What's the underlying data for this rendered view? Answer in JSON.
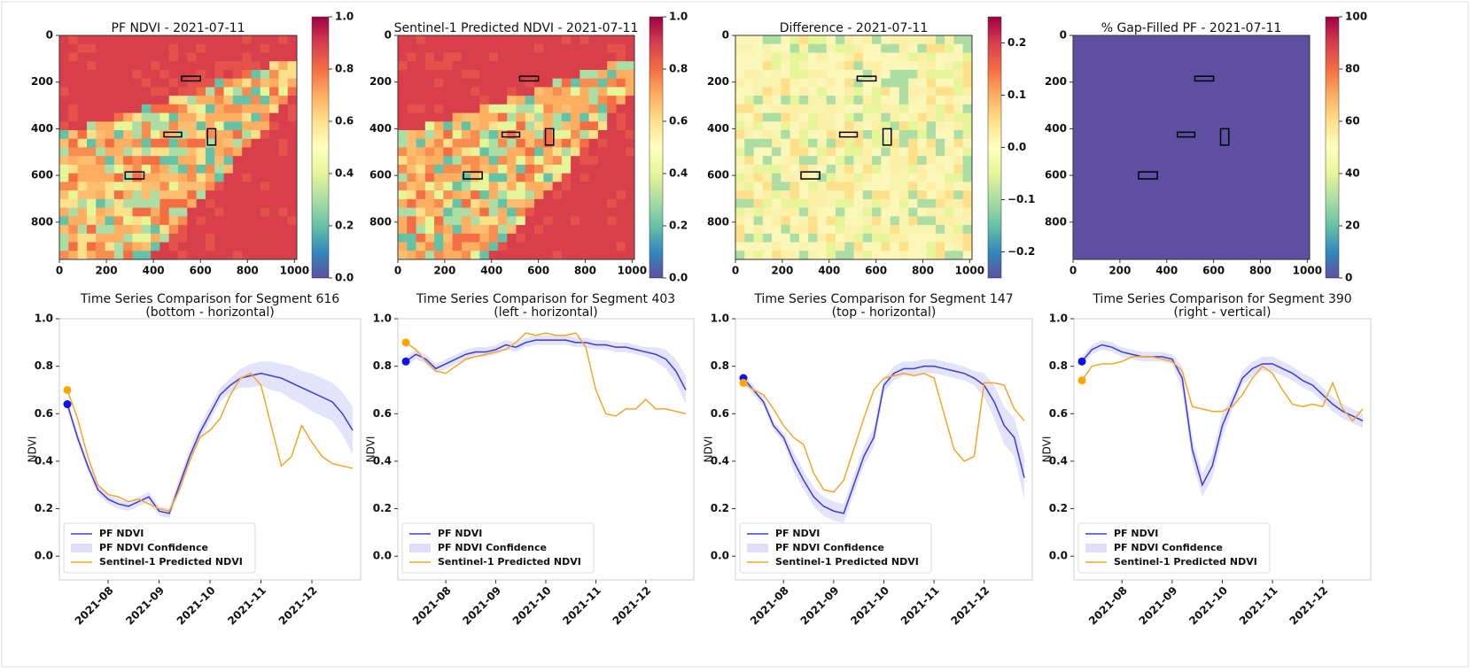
{
  "chart_data": [
    {
      "type": "heatmap",
      "title": "PF NDVI - 2021-07-11",
      "xlim": [
        0,
        1010
      ],
      "ylim": [
        960,
        0
      ],
      "xticks": [
        0,
        200,
        400,
        600,
        800,
        1000
      ],
      "yticks": [
        0,
        200,
        400,
        600,
        800
      ],
      "colormap": "Spectral",
      "clim": [
        0,
        1
      ],
      "cticks": [
        {
          "value": 0,
          "label": "0.0"
        },
        0.2,
        0.4,
        0.6,
        0.8,
        {
          "value": 1,
          "label": "1.0"
        }
      ]
    },
    {
      "type": "heatmap",
      "title": "Sentinel-1 Predicted NDVI - 2021-07-11",
      "xlim": [
        0,
        1010
      ],
      "ylim": [
        960,
        0
      ],
      "xticks": [
        0,
        200,
        400,
        600,
        800,
        1000
      ],
      "yticks": [
        0,
        200,
        400,
        600,
        800
      ],
      "colormap": "Spectral",
      "clim": [
        0,
        1
      ],
      "cticks": [
        {
          "value": 0,
          "label": "0.0"
        },
        0.2,
        0.4,
        0.6,
        0.8,
        {
          "value": 1,
          "label": "1.0"
        }
      ]
    },
    {
      "type": "heatmap",
      "title": "Difference - 2021-07-11",
      "xlim": [
        0,
        1010
      ],
      "ylim": [
        960,
        0
      ],
      "xticks": [
        0,
        200,
        400,
        600,
        800,
        1000
      ],
      "yticks": [
        0,
        200,
        400,
        600,
        800
      ],
      "colormap": "Spectral",
      "clim": [
        -0.25,
        0.25
      ],
      "cticks": [
        {
          "value": -0.2,
          "label": "−0.2"
        },
        {
          "value": -0.1,
          "label": "−0.1"
        },
        {
          "value": 0,
          "label": "0.0"
        },
        0.1,
        0.2
      ]
    },
    {
      "type": "heatmap",
      "title": "% Gap-Filled PF - 2021-07-11",
      "xlim": [
        0,
        1010
      ],
      "ylim": [
        960,
        0
      ],
      "xticks": [
        0,
        200,
        400,
        600,
        800,
        1000
      ],
      "yticks": [
        0,
        200,
        400,
        600,
        800
      ],
      "colormap": "Spectral",
      "clim": [
        0,
        100
      ],
      "cticks": [
        0,
        20,
        40,
        60,
        80,
        100
      ]
    },
    {
      "type": "line",
      "title": "Time Series Comparison for Segment 616",
      "subtitle": "(bottom - horizontal)",
      "y_label": "NDVI",
      "ylim": [
        -0.1,
        1.0
      ],
      "yticks": [
        {
          "value": 0,
          "label": "0.0"
        },
        0.2,
        0.4,
        0.6,
        0.8,
        {
          "value": 1,
          "label": "1.0"
        }
      ],
      "legend": "lower left",
      "start_marker": true,
      "categories": [
        null,
        null,
        null,
        null,
        "2021-08",
        null,
        null,
        null,
        null,
        "2021-09",
        null,
        null,
        null,
        null,
        "2021-10",
        null,
        null,
        null,
        null,
        "2021-11",
        null,
        null,
        null,
        null,
        "2021-12",
        null,
        null,
        null,
        null
      ],
      "series": [
        {
          "name": "PF NDVI",
          "color": "#3b3bdb",
          "values": [
            0.64,
            0.5,
            0.38,
            0.28,
            0.24,
            0.22,
            0.21,
            0.23,
            0.25,
            0.19,
            0.18,
            0.3,
            0.42,
            0.52,
            0.6,
            0.68,
            0.72,
            0.75,
            0.76,
            0.77,
            0.76,
            0.75,
            0.73,
            0.71,
            0.69,
            0.67,
            0.65,
            0.6,
            0.53
          ]
        },
        {
          "name": "PF NDVI Confidence",
          "color": "#dedefa",
          "lower": [
            0.62,
            0.48,
            0.36,
            0.26,
            0.22,
            0.2,
            0.19,
            0.21,
            0.23,
            0.17,
            0.16,
            0.27,
            0.39,
            0.49,
            0.57,
            0.65,
            0.69,
            0.71,
            0.71,
            0.72,
            0.7,
            0.69,
            0.66,
            0.64,
            0.61,
            0.59,
            0.57,
            0.51,
            0.43
          ],
          "upper": [
            0.66,
            0.52,
            0.4,
            0.3,
            0.26,
            0.24,
            0.23,
            0.25,
            0.27,
            0.21,
            0.2,
            0.33,
            0.45,
            0.55,
            0.63,
            0.71,
            0.75,
            0.79,
            0.81,
            0.82,
            0.82,
            0.81,
            0.8,
            0.78,
            0.77,
            0.75,
            0.73,
            0.69,
            0.63
          ]
        },
        {
          "name": "Sentinel-1 Predicted NDVI",
          "color": "#f5a52a",
          "values": [
            0.7,
            0.58,
            0.42,
            0.3,
            0.26,
            0.25,
            0.23,
            0.24,
            0.22,
            0.2,
            0.19,
            0.28,
            0.4,
            0.5,
            0.53,
            0.58,
            0.68,
            0.75,
            0.77,
            0.72,
            0.55,
            0.38,
            0.42,
            0.55,
            0.48,
            0.42,
            0.39,
            0.38,
            0.37
          ]
        }
      ]
    },
    {
      "type": "line",
      "title": "Time Series Comparison for Segment 403",
      "subtitle": "(left - horizontal)",
      "y_label": "NDVI",
      "ylim": [
        -0.1,
        1.0
      ],
      "yticks": [
        {
          "value": 0,
          "label": "0.0"
        },
        0.2,
        0.4,
        0.6,
        0.8,
        {
          "value": 1,
          "label": "1.0"
        }
      ],
      "legend": "lower left",
      "start_marker": true,
      "categories": [
        null,
        null,
        null,
        null,
        "2021-08",
        null,
        null,
        null,
        null,
        "2021-09",
        null,
        null,
        null,
        null,
        "2021-10",
        null,
        null,
        null,
        null,
        "2021-11",
        null,
        null,
        null,
        null,
        "2021-12",
        null,
        null,
        null,
        null
      ],
      "series": [
        {
          "name": "PF NDVI",
          "color": "#3b3bdb",
          "values": [
            0.82,
            0.85,
            0.83,
            0.79,
            0.81,
            0.83,
            0.85,
            0.86,
            0.86,
            0.87,
            0.89,
            0.88,
            0.9,
            0.91,
            0.91,
            0.91,
            0.91,
            0.9,
            0.9,
            0.89,
            0.89,
            0.88,
            0.88,
            0.87,
            0.86,
            0.85,
            0.83,
            0.78,
            0.7
          ]
        },
        {
          "name": "PF NDVI Confidence",
          "color": "#dedefa",
          "lower": [
            0.8,
            0.83,
            0.81,
            0.77,
            0.79,
            0.81,
            0.83,
            0.84,
            0.84,
            0.85,
            0.87,
            0.86,
            0.88,
            0.89,
            0.89,
            0.89,
            0.89,
            0.88,
            0.88,
            0.87,
            0.87,
            0.86,
            0.86,
            0.85,
            0.84,
            0.82,
            0.79,
            0.73,
            0.64
          ],
          "upper": [
            0.84,
            0.87,
            0.85,
            0.81,
            0.83,
            0.85,
            0.87,
            0.88,
            0.88,
            0.89,
            0.91,
            0.9,
            0.92,
            0.93,
            0.93,
            0.93,
            0.93,
            0.92,
            0.92,
            0.91,
            0.91,
            0.9,
            0.9,
            0.89,
            0.88,
            0.88,
            0.87,
            0.83,
            0.76
          ]
        },
        {
          "name": "Sentinel-1 Predicted NDVI",
          "color": "#f5a52a",
          "values": [
            0.9,
            0.87,
            0.82,
            0.78,
            0.77,
            0.8,
            0.83,
            0.84,
            0.85,
            0.86,
            0.87,
            0.9,
            0.94,
            0.93,
            0.94,
            0.93,
            0.93,
            0.94,
            0.88,
            0.7,
            0.6,
            0.59,
            0.62,
            0.62,
            0.66,
            0.62,
            0.62,
            0.61,
            0.6
          ]
        }
      ]
    },
    {
      "type": "line",
      "title": "Time Series Comparison for Segment 147",
      "subtitle": "(top - horizontal)",
      "y_label": "NDVI",
      "ylim": [
        -0.1,
        1.0
      ],
      "yticks": [
        {
          "value": 0,
          "label": "0.0"
        },
        0.2,
        0.4,
        0.6,
        0.8,
        {
          "value": 1,
          "label": "1.0"
        }
      ],
      "legend": "lower left",
      "start_marker": true,
      "categories": [
        null,
        null,
        null,
        null,
        "2021-08",
        null,
        null,
        null,
        null,
        "2021-09",
        null,
        null,
        null,
        null,
        "2021-10",
        null,
        null,
        null,
        null,
        "2021-11",
        null,
        null,
        null,
        null,
        "2021-12",
        null,
        null,
        null,
        null
      ],
      "series": [
        {
          "name": "PF NDVI",
          "color": "#3b3bdb",
          "values": [
            0.75,
            0.7,
            0.65,
            0.55,
            0.5,
            0.4,
            0.32,
            0.25,
            0.21,
            0.19,
            0.18,
            0.3,
            0.42,
            0.5,
            0.72,
            0.77,
            0.79,
            0.79,
            0.8,
            0.8,
            0.79,
            0.78,
            0.77,
            0.75,
            0.72,
            0.65,
            0.55,
            0.5,
            0.33
          ]
        },
        {
          "name": "PF NDVI Confidence",
          "color": "#dedefa",
          "lower": [
            0.73,
            0.68,
            0.63,
            0.53,
            0.48,
            0.36,
            0.28,
            0.21,
            0.17,
            0.15,
            0.14,
            0.26,
            0.38,
            0.46,
            0.69,
            0.74,
            0.76,
            0.76,
            0.77,
            0.77,
            0.76,
            0.75,
            0.74,
            0.72,
            0.67,
            0.58,
            0.47,
            0.42,
            0.24
          ],
          "upper": [
            0.77,
            0.72,
            0.67,
            0.57,
            0.52,
            0.44,
            0.36,
            0.29,
            0.25,
            0.23,
            0.22,
            0.34,
            0.46,
            0.54,
            0.75,
            0.8,
            0.82,
            0.82,
            0.83,
            0.83,
            0.82,
            0.81,
            0.8,
            0.78,
            0.77,
            0.72,
            0.63,
            0.58,
            0.42
          ]
        },
        {
          "name": "Sentinel-1 Predicted NDVI",
          "color": "#f5a52a",
          "values": [
            0.73,
            0.7,
            0.68,
            0.62,
            0.55,
            0.5,
            0.47,
            0.35,
            0.28,
            0.27,
            0.32,
            0.45,
            0.58,
            0.7,
            0.75,
            0.76,
            0.77,
            0.76,
            0.77,
            0.75,
            0.6,
            0.45,
            0.4,
            0.42,
            0.73,
            0.73,
            0.72,
            0.62,
            0.57
          ]
        }
      ]
    },
    {
      "type": "line",
      "title": "Time Series Comparison for Segment 390",
      "subtitle": "(right - vertical)",
      "y_label": "NDVI",
      "ylim": [
        -0.1,
        1.0
      ],
      "yticks": [
        {
          "value": 0,
          "label": "0.0"
        },
        0.2,
        0.4,
        0.6,
        0.8,
        {
          "value": 1,
          "label": "1.0"
        }
      ],
      "legend": "lower left",
      "start_marker": true,
      "categories": [
        null,
        null,
        null,
        null,
        "2021-08",
        null,
        null,
        null,
        null,
        "2021-09",
        null,
        null,
        null,
        null,
        "2021-10",
        null,
        null,
        null,
        null,
        "2021-11",
        null,
        null,
        null,
        null,
        "2021-12",
        null,
        null,
        null,
        null
      ],
      "series": [
        {
          "name": "PF NDVI",
          "color": "#3b3bdb",
          "values": [
            0.82,
            0.87,
            0.89,
            0.88,
            0.86,
            0.85,
            0.84,
            0.84,
            0.84,
            0.83,
            0.75,
            0.45,
            0.3,
            0.38,
            0.55,
            0.65,
            0.75,
            0.79,
            0.81,
            0.81,
            0.79,
            0.77,
            0.74,
            0.72,
            0.68,
            0.64,
            0.61,
            0.59,
            0.57
          ]
        },
        {
          "name": "PF NDVI Confidence",
          "color": "#dedefa",
          "lower": [
            0.8,
            0.85,
            0.87,
            0.86,
            0.84,
            0.83,
            0.82,
            0.82,
            0.82,
            0.81,
            0.7,
            0.4,
            0.25,
            0.33,
            0.5,
            0.62,
            0.72,
            0.76,
            0.78,
            0.78,
            0.76,
            0.74,
            0.71,
            0.69,
            0.65,
            0.61,
            0.58,
            0.56,
            0.54
          ],
          "upper": [
            0.84,
            0.89,
            0.91,
            0.9,
            0.88,
            0.87,
            0.86,
            0.86,
            0.86,
            0.85,
            0.8,
            0.5,
            0.35,
            0.43,
            0.6,
            0.68,
            0.78,
            0.82,
            0.84,
            0.84,
            0.82,
            0.8,
            0.77,
            0.75,
            0.71,
            0.67,
            0.64,
            0.62,
            0.6
          ]
        },
        {
          "name": "Sentinel-1 Predicted NDVI",
          "color": "#f5a52a",
          "values": [
            0.74,
            0.8,
            0.81,
            0.81,
            0.82,
            0.84,
            0.84,
            0.84,
            0.83,
            0.82,
            0.78,
            0.63,
            0.62,
            0.61,
            0.61,
            0.63,
            0.68,
            0.75,
            0.8,
            0.77,
            0.7,
            0.64,
            0.63,
            0.64,
            0.63,
            0.73,
            0.62,
            0.57,
            0.62
          ]
        }
      ]
    }
  ]
}
